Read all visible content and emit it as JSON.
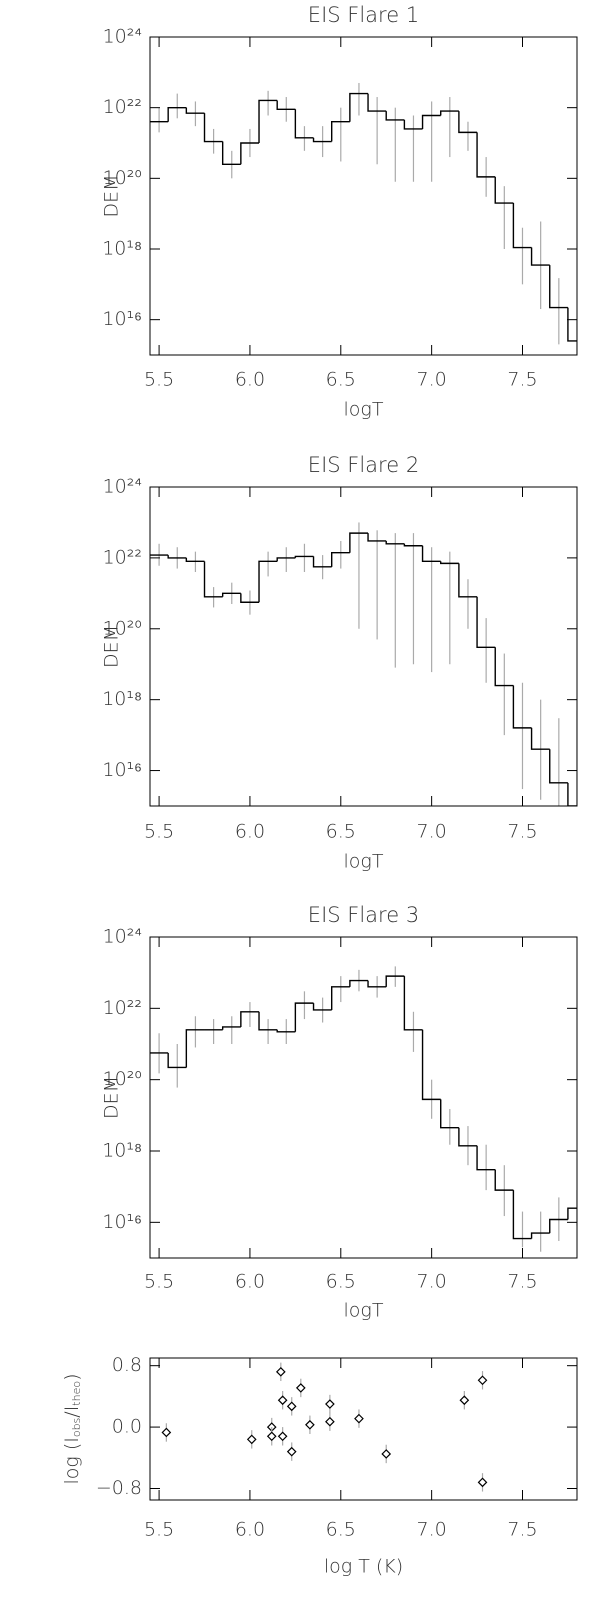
{
  "chart_data": [
    {
      "type": "step",
      "title": "EIS Flare 1",
      "xlabel": "logT",
      "ylabel": "DEM",
      "log_y": true,
      "color": "#000000",
      "error_color": "#aaaaaa",
      "xlim": [
        5.45,
        7.8
      ],
      "ylim": [
        1000000000000000.0,
        1e+24
      ],
      "xticks": [
        5.5,
        {
          "value": 6,
          "label": "6.0"
        },
        6.5,
        {
          "value": 7,
          "label": "7.0"
        },
        7.5
      ],
      "yticks": [
        {
          "value": 1e+16,
          "label": "10¹⁶"
        },
        {
          "value": 1e+18,
          "label": "10¹⁸"
        },
        {
          "value": 1e+20,
          "label": "10²⁰"
        },
        {
          "value": 1e+22,
          "label": "10²²"
        },
        {
          "value": 1e+24,
          "label": "10²⁴"
        }
      ],
      "x": [
        5.5,
        5.6,
        5.7,
        5.8,
        5.9,
        6.0,
        6.1,
        6.2,
        6.3,
        6.4,
        6.5,
        6.6,
        6.7,
        6.8,
        6.9,
        7.0,
        7.1,
        7.2,
        7.3,
        7.4,
        7.5,
        7.6,
        7.7,
        7.8
      ],
      "values": [
        4e+21,
        1e+22,
        7e+21,
        1.1e+21,
        2.5e+20,
        1e+21,
        1.6e+22,
        9e+21,
        1.4e+21,
        1.1e+21,
        4e+21,
        2.5e+22,
        8e+21,
        4.5e+21,
        2.5e+21,
        6e+21,
        8e+21,
        2e+21,
        1.1e+20,
        2e+19,
        1.1e+18,
        3.5e+17,
        2.2e+16,
        2500000000000000.0
      ],
      "error_low": [
        2e+21,
        5e+21,
        3e+21,
        5e+20,
        1e+20,
        4e+20,
        6e+21,
        4e+21,
        6e+20,
        4e+20,
        3e+20,
        6e+21,
        2.5e+20,
        8e+19,
        8e+19,
        8e+19,
        4e+20,
        6e+20,
        3e+19,
        1e+18,
        1e+17,
        2e+16,
        2000000000000000.0,
        1000000000000000.0
      ],
      "error_high": [
        1e+22,
        2.5e+22,
        1.5e+22,
        2.5e+21,
        6e+20,
        2.5e+21,
        3e+22,
        2e+22,
        3e+21,
        3e+21,
        1e+22,
        5e+22,
        2e+22,
        1e+22,
        6e+21,
        1.5e+22,
        2e+22,
        4e+21,
        4e+20,
        6e+19,
        4e+18,
        6e+18,
        1.5e+17,
        1e+16
      ]
    },
    {
      "type": "step",
      "title": "EIS Flare 2",
      "xlabel": "logT",
      "ylabel": "DEM",
      "log_y": true,
      "color": "#000000",
      "error_color": "#aaaaaa",
      "xlim": [
        5.45,
        7.8
      ],
      "ylim": [
        1000000000000000.0,
        1e+24
      ],
      "xticks": [
        5.5,
        {
          "value": 6,
          "label": "6.0"
        },
        6.5,
        {
          "value": 7,
          "label": "7.0"
        },
        7.5
      ],
      "yticks": [
        {
          "value": 1e+16,
          "label": "10¹⁶"
        },
        {
          "value": 1e+18,
          "label": "10¹⁸"
        },
        {
          "value": 1e+20,
          "label": "10²⁰"
        },
        {
          "value": 1e+22,
          "label": "10²²"
        },
        {
          "value": 1e+24,
          "label": "10²⁴"
        }
      ],
      "x": [
        5.5,
        5.6,
        5.7,
        5.8,
        5.9,
        6.0,
        6.1,
        6.2,
        6.3,
        6.4,
        6.5,
        6.6,
        6.7,
        6.8,
        6.9,
        7.0,
        7.1,
        7.2,
        7.3,
        7.4,
        7.5,
        7.6,
        7.7,
        7.8
      ],
      "values": [
        1.2e+22,
        1e+22,
        8e+21,
        8e+20,
        1e+21,
        5.6e+20,
        8e+21,
        1e+22,
        1.1e+22,
        5.6e+21,
        1.4e+22,
        5e+22,
        3e+22,
        2.5e+22,
        2.2e+22,
        8e+21,
        7e+21,
        8e+20,
        3e+19,
        2.5e+18,
        1.6e+17,
        4e+16,
        4500000000000000.0,
        1000000000000000.0
      ],
      "error_low": [
        6e+21,
        5e+21,
        4e+21,
        4e+20,
        5e+20,
        2.5e+20,
        3e+21,
        4e+21,
        4e+21,
        2.5e+21,
        5e+21,
        1e+20,
        5e+19,
        8e+18,
        1e+19,
        6e+18,
        1e+19,
        1e+20,
        3e+18,
        1e+17,
        3000000000000000.0,
        1500000000000000.0,
        1000000000000000.0,
        1000000000000000.0
      ],
      "error_high": [
        2.5e+22,
        2e+22,
        1.5e+22,
        1.5e+21,
        2e+21,
        1.2e+21,
        1.5e+22,
        2e+22,
        2.5e+22,
        1.2e+22,
        3e+22,
        1e+23,
        6e+22,
        5e+22,
        5e+22,
        2e+22,
        1.5e+22,
        2.5e+21,
        2e+20,
        2e+19,
        3e+18,
        1e+18,
        3e+17,
        5e+17
      ]
    },
    {
      "type": "step",
      "title": "EIS Flare 3",
      "xlabel": "logT",
      "ylabel": "DEM",
      "log_y": true,
      "color": "#000000",
      "error_color": "#aaaaaa",
      "xlim": [
        5.45,
        7.8
      ],
      "ylim": [
        1000000000000000.0,
        1e+24
      ],
      "xticks": [
        5.5,
        {
          "value": 6,
          "label": "6.0"
        },
        6.5,
        {
          "value": 7,
          "label": "7.0"
        },
        7.5
      ],
      "yticks": [
        {
          "value": 1e+16,
          "label": "10¹⁶"
        },
        {
          "value": 1e+18,
          "label": "10¹⁸"
        },
        {
          "value": 1e+20,
          "label": "10²⁰"
        },
        {
          "value": 1e+22,
          "label": "10²²"
        },
        {
          "value": 1e+24,
          "label": "10²⁴"
        }
      ],
      "x": [
        5.5,
        5.6,
        5.7,
        5.8,
        5.9,
        6.0,
        6.1,
        6.2,
        6.3,
        6.4,
        6.5,
        6.6,
        6.7,
        6.8,
        6.9,
        7.0,
        7.1,
        7.2,
        7.3,
        7.4,
        7.5,
        7.6,
        7.7,
        7.8
      ],
      "values": [
        5.6e+20,
        2.2e+20,
        2.5e+21,
        2.5e+21,
        3e+21,
        8e+21,
        2.5e+21,
        2.2e+21,
        1.4e+22,
        9e+21,
        4e+22,
        6e+22,
        4e+22,
        8e+22,
        2.5e+21,
        2.8e+19,
        4.5e+18,
        1.4e+18,
        3e+17,
        8e+16,
        3500000000000000.0,
        5000000000000000.0,
        1.2e+16,
        2.5e+16
      ],
      "error_low": [
        1.5e+20,
        6e+19,
        8e+20,
        1e+21,
        1e+21,
        3e+21,
        1e+21,
        1e+21,
        5e+21,
        4e+21,
        1.5e+22,
        3e+22,
        2e+22,
        4e+22,
        6e+20,
        8e+18,
        1.5e+18,
        4e+17,
        8e+16,
        1.5e+16,
        2000000000000000.0,
        1500000000000000.0,
        3000000000000000.0,
        8000000000000000.0
      ],
      "error_high": [
        2e+21,
        1e+21,
        6e+21,
        5e+21,
        6e+21,
        1.5e+22,
        5e+21,
        5e+21,
        3e+22,
        2e+22,
        8e+22,
        1.2e+23,
        8e+22,
        1.5e+23,
        8e+21,
        1e+20,
        1.5e+19,
        5e+18,
        1.5e+18,
        4e+17,
        2e+16,
        2e+16,
        5e+16,
        8e+16
      ]
    },
    {
      "type": "scatter",
      "xlabel": "log T (K)",
      "ylabel_parts": [
        "log (I",
        "obs",
        "/I",
        "theo",
        ")"
      ],
      "color": "#000000",
      "error_color": "#aaaaaa",
      "xlim": [
        5.45,
        7.8
      ],
      "ylim": [
        -0.95,
        0.9
      ],
      "xticks": [
        5.5,
        {
          "value": 6,
          "label": "6.0"
        },
        6.5,
        {
          "value": 7,
          "label": "7.0"
        },
        7.5
      ],
      "yticks": [
        {
          "value": -0.8,
          "label": "−0.8"
        },
        {
          "value": 0,
          "label": "0.0"
        },
        0.8
      ],
      "x": [
        5.54,
        6.01,
        6.12,
        6.12,
        6.17,
        6.18,
        6.18,
        6.23,
        6.23,
        6.28,
        6.33,
        6.44,
        6.44,
        6.6,
        6.75,
        7.18,
        7.28,
        7.28
      ],
      "values": [
        -0.07,
        -0.16,
        0.0,
        -0.12,
        0.72,
        0.35,
        -0.12,
        0.27,
        -0.32,
        0.51,
        0.03,
        0.3,
        0.07,
        0.11,
        -0.35,
        0.35,
        0.61,
        -0.72
      ],
      "errors": [
        0.12,
        0.12,
        0.12,
        0.12,
        0.12,
        0.12,
        0.12,
        0.12,
        0.12,
        0.12,
        0.12,
        0.12,
        0.12,
        0.12,
        0.12,
        0.12,
        0.12,
        0.12
      ]
    }
  ]
}
